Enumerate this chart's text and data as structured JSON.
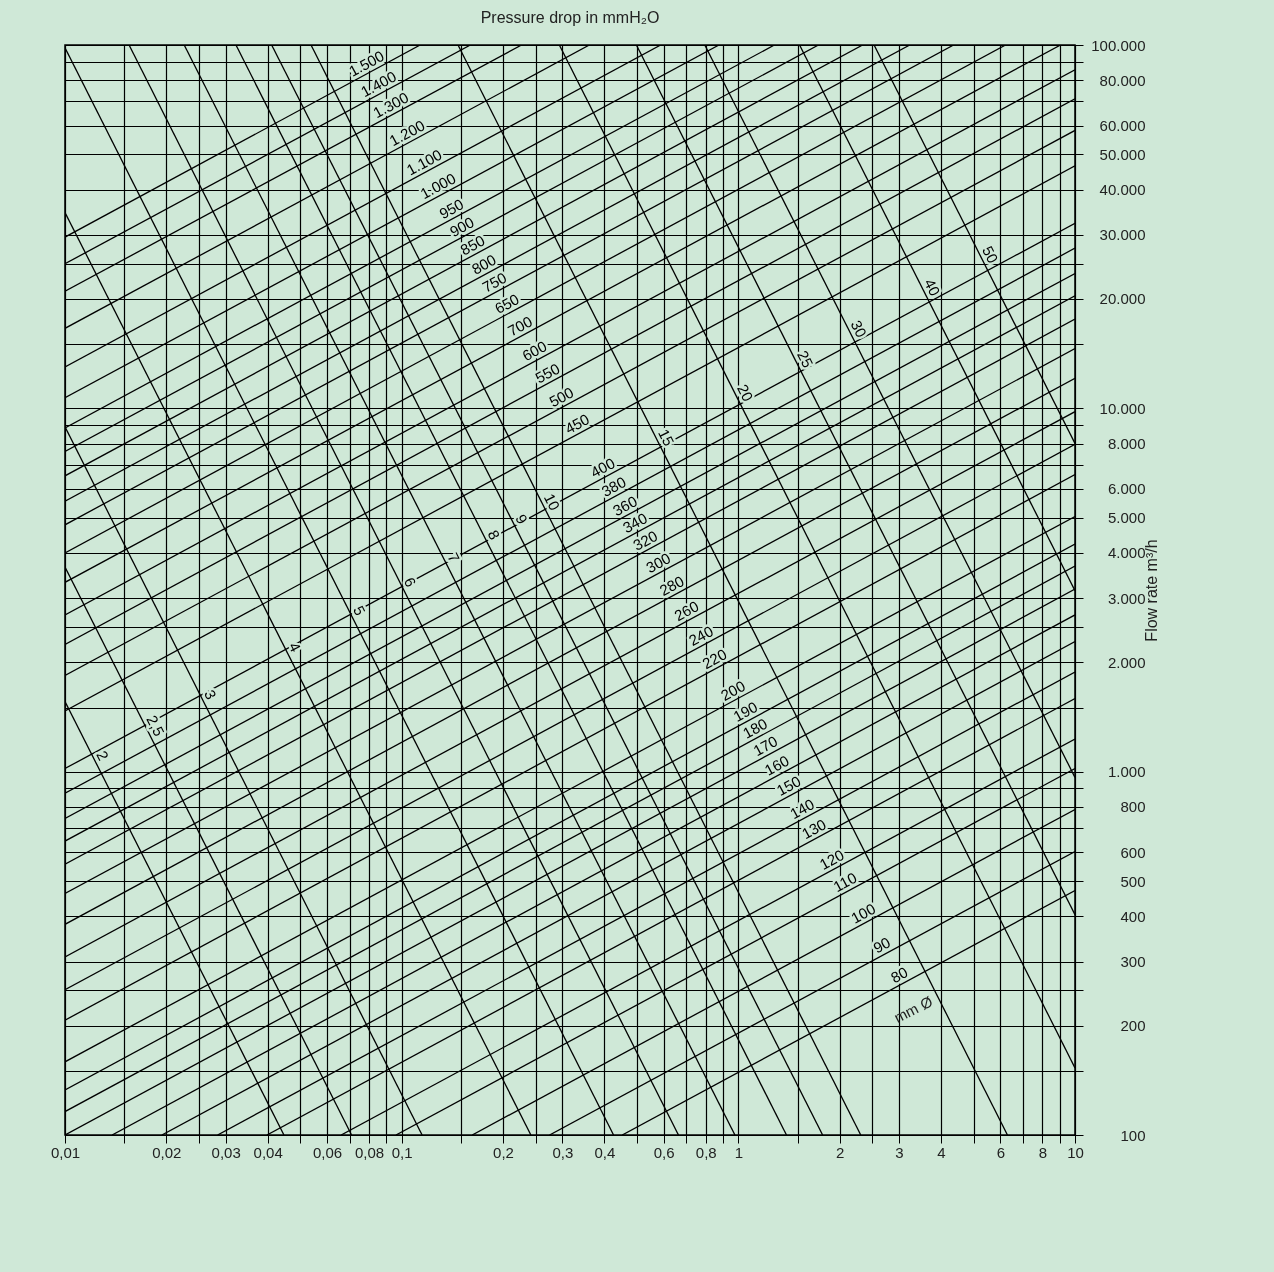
{
  "chart_data": {
    "type": "line",
    "xlabel": "Pressure drop in mmH₂O",
    "ylabel": "Flow rate m³/h",
    "log": "xy",
    "grid": true,
    "legend": false,
    "xlim": [
      0.01,
      10
    ],
    "ylim": [
      100,
      100000
    ],
    "xticks": [
      {
        "value": 0.01,
        "label": "0,01"
      },
      {
        "value": 0.015,
        "label": null
      },
      {
        "value": 0.02,
        "label": "0,02"
      },
      {
        "value": 0.025,
        "label": null
      },
      {
        "value": 0.03,
        "label": "0,03"
      },
      {
        "value": 0.04,
        "label": "0,04"
      },
      {
        "value": 0.05,
        "label": null
      },
      {
        "value": 0.06,
        "label": "0,06"
      },
      {
        "value": 0.07,
        "label": null
      },
      {
        "value": 0.08,
        "label": "0,08"
      },
      {
        "value": 0.09,
        "label": null
      },
      {
        "value": 0.1,
        "label": "0,1"
      },
      {
        "value": 0.15,
        "label": null
      },
      {
        "value": 0.2,
        "label": "0,2"
      },
      {
        "value": 0.25,
        "label": null
      },
      {
        "value": 0.3,
        "label": "0,3"
      },
      {
        "value": 0.4,
        "label": "0,4"
      },
      {
        "value": 0.5,
        "label": null
      },
      {
        "value": 0.6,
        "label": "0,6"
      },
      {
        "value": 0.7,
        "label": null
      },
      {
        "value": 0.8,
        "label": "0,8"
      },
      {
        "value": 0.9,
        "label": null
      },
      1,
      {
        "value": 1.5,
        "label": null
      },
      2,
      {
        "value": 2.5,
        "label": null
      },
      3,
      4,
      {
        "value": 5,
        "label": null
      },
      6,
      {
        "value": 7,
        "label": null
      },
      8,
      {
        "value": 9,
        "label": null
      },
      10
    ],
    "yticks": [
      100,
      {
        "value": 150,
        "label": null
      },
      200,
      {
        "value": 250,
        "label": null
      },
      300,
      400,
      500,
      600,
      {
        "value": 700,
        "label": null
      },
      800,
      {
        "value": 900,
        "label": null
      },
      {
        "value": 1000,
        "label": "1.000"
      },
      {
        "value": 1500,
        "label": null
      },
      {
        "value": 2000,
        "label": "2.000"
      },
      {
        "value": 2500,
        "label": null
      },
      {
        "value": 3000,
        "label": "3.000"
      },
      {
        "value": 4000,
        "label": "4.000"
      },
      {
        "value": 5000,
        "label": "5.000"
      },
      {
        "value": 6000,
        "label": "6.000"
      },
      {
        "value": 7000,
        "label": null
      },
      {
        "value": 8000,
        "label": "8.000"
      },
      {
        "value": 9000,
        "label": null
      },
      {
        "value": 10000,
        "label": "10.000"
      },
      {
        "value": 15000,
        "label": null
      },
      {
        "value": 20000,
        "label": "20.000"
      },
      {
        "value": 25000,
        "label": null
      },
      {
        "value": 30000,
        "label": "30.000"
      },
      {
        "value": 40000,
        "label": "40.000"
      },
      {
        "value": 50000,
        "label": "50.000"
      },
      {
        "value": 60000,
        "label": "60.000"
      },
      {
        "value": 70000,
        "label": null
      },
      {
        "value": 80000,
        "label": "80.000"
      },
      {
        "value": 90000,
        "label": null
      },
      {
        "value": 100000,
        "label": "100.000"
      }
    ],
    "annotations": [
      "mm Ø"
    ],
    "series": [
      {
        "name": "1.500",
        "type": "line",
        "color": "#000000",
        "x": [
          0.01,
          0.1135
        ],
        "values": [
          29600,
          100000
        ]
      },
      {
        "name": "1.400",
        "type": "line",
        "color": "#000000",
        "x": [
          0.01,
          0.16
        ],
        "values": [
          25000,
          100000
        ]
      },
      {
        "name": "1.300",
        "type": "line",
        "color": "#000000",
        "x": [
          0.01,
          0.227
        ],
        "values": [
          21000,
          100000
        ]
      },
      {
        "name": "1.200",
        "type": "line",
        "color": "#000000",
        "x": [
          0.01,
          0.361
        ],
        "values": [
          16600,
          100000
        ]
      },
      {
        "name": "1.100",
        "type": "line",
        "color": "#000000",
        "x": [
          0.01,
          0.588
        ],
        "values": [
          13000,
          100000
        ]
      },
      {
        "name": "1.000",
        "type": "line",
        "color": "#000000",
        "x": [
          0.01,
          0.876
        ],
        "values": [
          10700,
          100000
        ]
      },
      {
        "name": "950",
        "type": "line",
        "color": "#000000",
        "x": [
          0.01,
          1.28
        ],
        "values": [
          8830,
          100000
        ]
      },
      {
        "name": "900",
        "type": "line",
        "color": "#000000",
        "x": [
          0.01,
          1.73
        ],
        "values": [
          7610,
          100000
        ]
      },
      {
        "name": "850",
        "type": "line",
        "color": "#000000",
        "x": [
          0.01,
          2.34
        ],
        "values": [
          6520,
          100000
        ]
      },
      {
        "name": "800",
        "type": "line",
        "color": "#000000",
        "x": [
          0.01,
          3.23
        ],
        "values": [
          5550,
          100000
        ]
      },
      {
        "name": "750",
        "type": "line",
        "color": "#000000",
        "x": [
          0.01,
          4.36
        ],
        "values": [
          4780,
          100000
        ]
      },
      {
        "name": "650",
        "type": "line",
        "color": "#000000",
        "x": [
          0.01,
          6.22
        ],
        "values": [
          4000,
          100000
        ]
      },
      {
        "name": "700",
        "type": "line",
        "color": "#000000",
        "x": [
          0.01,
          9.06
        ],
        "values": [
          3320,
          100000
        ]
      },
      {
        "name": "600",
        "type": "line",
        "color": "#000000",
        "x": [
          0.01,
          10
        ],
        "values": [
          2700,
          85500
        ]
      },
      {
        "name": "550",
        "type": "line",
        "color": "#000000",
        "x": [
          0.01,
          10
        ],
        "values": [
          2240,
          71100
        ]
      },
      {
        "name": "500",
        "type": "line",
        "color": "#000000",
        "x": [
          0.01,
          10
        ],
        "values": [
          1840,
          58200
        ]
      },
      {
        "name": "450",
        "type": "line",
        "color": "#000000",
        "x": [
          0.01,
          10
        ],
        "values": [
          1470,
          46500
        ]
      },
      {
        "name": "400",
        "type": "line",
        "color": "#000000",
        "x": [
          0.01,
          10
        ],
        "values": [
          1020,
          32300
        ]
      },
      {
        "name": "380",
        "type": "line",
        "color": "#000000",
        "x": [
          0.01,
          10
        ],
        "values": [
          872,
          27600
        ]
      },
      {
        "name": "360",
        "type": "line",
        "color": "#000000",
        "x": [
          0.01,
          10
        ],
        "values": [
          743,
          23500
        ]
      },
      {
        "name": "340",
        "type": "line",
        "color": "#000000",
        "x": [
          0.01,
          10
        ],
        "values": [
          644,
          20400
        ]
      },
      {
        "name": "320",
        "type": "line",
        "color": "#000000",
        "x": [
          0.01,
          10
        ],
        "values": [
          556,
          17600
        ]
      },
      {
        "name": "300",
        "type": "line",
        "color": "#000000",
        "x": [
          0.01,
          10
        ],
        "values": [
          462,
          14600
        ]
      },
      {
        "name": "280",
        "type": "line",
        "color": "#000000",
        "x": [
          0.01,
          10
        ],
        "values": [
          380,
          12100
        ]
      },
      {
        "name": "260",
        "type": "line",
        "color": "#000000",
        "x": [
          0.01,
          10
        ],
        "values": [
          309,
          9790
        ]
      },
      {
        "name": "240",
        "type": "line",
        "color": "#000000",
        "x": [
          0.01,
          10
        ],
        "values": [
          251,
          7960
        ]
      },
      {
        "name": "220",
        "type": "line",
        "color": "#000000",
        "x": [
          0.01,
          10
        ],
        "values": [
          207,
          6570
        ]
      },
      {
        "name": "200",
        "type": "line",
        "color": "#000000",
        "x": [
          0.01,
          10
        ],
        "values": [
          159,
          5040
        ]
      },
      {
        "name": "190",
        "type": "line",
        "color": "#000000",
        "x": [
          0.01,
          10
        ],
        "values": [
          133,
          4230
        ]
      },
      {
        "name": "180",
        "type": "line",
        "color": "#000000",
        "x": [
          0.01,
          10
        ],
        "values": [
          116,
          3680
        ]
      },
      {
        "name": "170",
        "type": "line",
        "color": "#000000",
        "x": [
          0.01,
          10
        ],
        "values": [
          100,
          3180
        ]
      },
      {
        "name": "160",
        "type": "line",
        "color": "#000000",
        "x": [
          0.0138,
          10
        ],
        "values": [
          100,
          2700
        ]
      },
      {
        "name": "150",
        "type": "line",
        "color": "#000000",
        "x": [
          0.0194,
          10
        ],
        "values": [
          100,
          2280
        ]
      },
      {
        "name": "140",
        "type": "line",
        "color": "#000000",
        "x": [
          0.0284,
          10
        ],
        "values": [
          100,
          1880
        ]
      },
      {
        "name": "130",
        "type": "line",
        "color": "#000000",
        "x": [
          0.0398,
          10
        ],
        "values": [
          100,
          1590
        ]
      },
      {
        "name": "120",
        "type": "line",
        "color": "#000000",
        "x": [
          0.0661,
          10
        ],
        "values": [
          100,
          1230
        ]
      },
      {
        "name": "110",
        "type": "line",
        "color": "#000000",
        "x": [
          0.0962,
          10
        ],
        "values": [
          100,
          1020
        ]
      },
      {
        "name": "100",
        "type": "line",
        "color": "#000000",
        "x": [
          0.162,
          10
        ],
        "values": [
          100,
          787
        ]
      },
      {
        "name": "90",
        "type": "line",
        "color": "#000000",
        "x": [
          0.275,
          10
        ],
        "values": [
          100,
          603
        ]
      },
      {
        "name": "80",
        "type": "line",
        "color": "#000000",
        "x": [
          0.452,
          10
        ],
        "values": [
          100,
          471
        ]
      },
      {
        "name": "2",
        "type": "line",
        "color": "#000000",
        "x": [
          0.01,
          0.0447
        ],
        "values": [
          1560,
          100
        ]
      },
      {
        "name": "2,5",
        "type": "line",
        "color": "#000000",
        "x": [
          0.01,
          0.071
        ],
        "values": [
          3660,
          100
        ]
      },
      {
        "name": "3",
        "type": "line",
        "color": "#000000",
        "x": [
          0.01,
          0.115
        ],
        "values": [
          8890,
          100
        ]
      },
      {
        "name": "4",
        "type": "line",
        "color": "#000000",
        "x": [
          0.01,
          0.242
        ],
        "values": [
          34600,
          100
        ]
      },
      {
        "name": "5",
        "type": "line",
        "color": "#000000",
        "x": [
          0.01,
          0.426
        ],
        "values": [
          98200,
          100
        ]
      },
      {
        "name": "6",
        "type": "line",
        "color": "#000000",
        "x": [
          0.0155,
          0.664
        ],
        "values": [
          100000,
          100
        ]
      },
      {
        "name": "7",
        "type": "line",
        "color": "#000000",
        "x": [
          0.0226,
          0.977
        ],
        "values": [
          100000,
          100
        ]
      },
      {
        "name": "8",
        "type": "line",
        "color": "#000000",
        "x": [
          0.0322,
          1.39
        ],
        "values": [
          100000,
          100
        ]
      },
      {
        "name": "9",
        "type": "line",
        "color": "#000000",
        "x": [
          0.0411,
          1.78
        ],
        "values": [
          100000,
          100
        ]
      },
      {
        "name": "10",
        "type": "line",
        "color": "#000000",
        "x": [
          0.0538,
          2.31
        ],
        "values": [
          100000,
          100
        ]
      },
      {
        "name": "15",
        "type": "line",
        "color": "#000000",
        "x": [
          0.147,
          6.3
        ],
        "values": [
          100000,
          100
        ]
      },
      {
        "name": "20",
        "type": "line",
        "color": "#000000",
        "x": [
          0.294,
          10
        ],
        "values": [
          100000,
          153
        ]
      },
      {
        "name": "25",
        "type": "line",
        "color": "#000000",
        "x": [
          0.498,
          10
        ],
        "values": [
          100000,
          404
        ]
      },
      {
        "name": "30",
        "type": "line",
        "color": "#000000",
        "x": [
          0.795,
          10
        ],
        "values": [
          100000,
          964
        ]
      },
      {
        "name": "40",
        "type": "line",
        "color": "#000000",
        "x": [
          1.52,
          10
        ],
        "values": [
          100000,
          3150
        ]
      },
      {
        "name": "50",
        "type": "line",
        "color": "#000000",
        "x": [
          2.53,
          10
        ],
        "values": [
          100000,
          8000
        ]
      }
    ]
  }
}
